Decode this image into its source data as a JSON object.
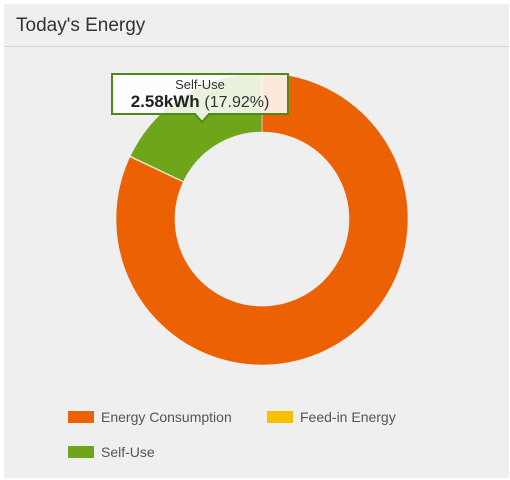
{
  "panel": {
    "title": "Today's Energy"
  },
  "chart_data": {
    "type": "pie",
    "style": "donut",
    "series": [
      {
        "name": "Energy Consumption",
        "value": 82.08,
        "color": "#ec6103"
      },
      {
        "name": "Feed-in Energy",
        "value": 0.1,
        "color": "#f6c200"
      },
      {
        "name": "Self-Use",
        "value": 17.92,
        "color": "#6ea51b"
      }
    ],
    "tooltip": {
      "series": "Self-Use",
      "label": "Self-Use",
      "value": "2.58kWh",
      "percent": "(17.92%)"
    },
    "legend_position": "bottom-left"
  }
}
